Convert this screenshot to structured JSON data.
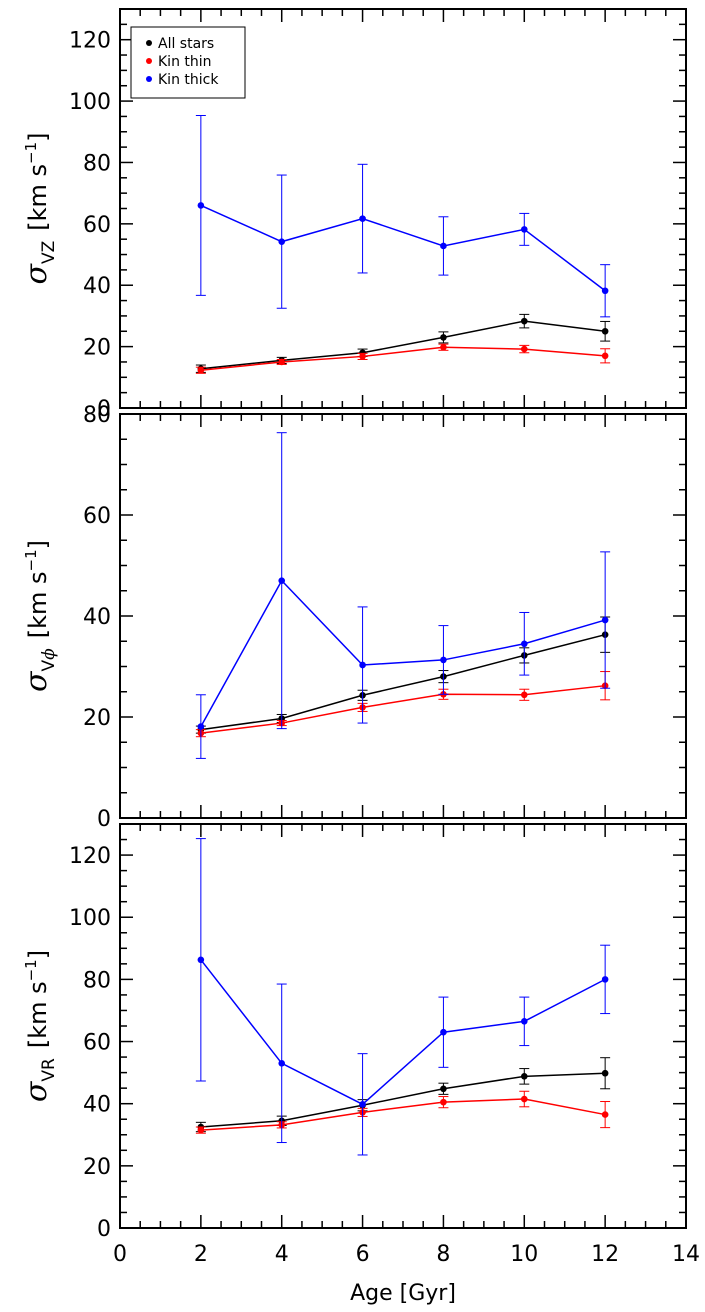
{
  "chart_data": [
    {
      "type": "line",
      "panel": "top",
      "ylabel_symbol": "σ",
      "ylabel_subscript": "VZ",
      "ylabel_units": "[km s",
      "ylabel_units_sup": "−1",
      "ylabel_units_close": "]",
      "ylim": [
        0,
        130
      ],
      "yticks": [
        0,
        20,
        40,
        60,
        80,
        100,
        120
      ],
      "xlim": [
        0,
        14
      ],
      "legend": {
        "placement": "top-left",
        "entries": [
          {
            "label": "All stars",
            "color": "#000000"
          },
          {
            "label": "Kin thin",
            "color": "#ff0000"
          },
          {
            "label": "Kin thick",
            "color": "#0000ff"
          }
        ]
      },
      "series": [
        {
          "name": "All stars",
          "color": "#000000",
          "x": [
            2,
            4,
            6,
            8,
            10,
            12
          ],
          "y": [
            12.8,
            15.5,
            18,
            23,
            28.3,
            25
          ],
          "err": [
            1.2,
            1,
            1.2,
            1.8,
            2.2,
            3.2
          ]
        },
        {
          "name": "Kin thin",
          "color": "#ff0000",
          "x": [
            2,
            4,
            6,
            8,
            10,
            12
          ],
          "y": [
            12.3,
            15,
            16.8,
            19.8,
            19.2,
            17
          ],
          "err": [
            1,
            0.8,
            1,
            1,
            1.2,
            2.3
          ]
        },
        {
          "name": "Kin thick",
          "color": "#0000ff",
          "x": [
            2,
            4,
            6,
            8,
            10,
            12
          ],
          "y": [
            66,
            54.2,
            61.7,
            52.8,
            58.2,
            38.2
          ],
          "err": [
            29.3,
            21.7,
            17.7,
            9.5,
            5.2,
            8.5
          ]
        }
      ]
    },
    {
      "type": "line",
      "panel": "middle",
      "ylabel_symbol": "σ",
      "ylabel_subscript": "V",
      "ylabel_subscript_phi": "ϕ",
      "ylabel_units": "[km s",
      "ylabel_units_sup": "−1",
      "ylabel_units_close": "]",
      "ylim": [
        0,
        80
      ],
      "yticks": [
        0,
        20,
        40,
        60,
        80
      ],
      "xlim": [
        0,
        14
      ],
      "series": [
        {
          "name": "All stars",
          "color": "#000000",
          "x": [
            2,
            4,
            6,
            8,
            10,
            12
          ],
          "y": [
            17.5,
            19.7,
            24.3,
            28,
            32.2,
            36.3
          ],
          "err": [
            0.7,
            0.8,
            1,
            1.2,
            1.5,
            3.5
          ]
        },
        {
          "name": "Kin thin",
          "color": "#ff0000",
          "x": [
            2,
            4,
            6,
            8,
            10,
            12
          ],
          "y": [
            16.8,
            18.8,
            21.9,
            24.5,
            24.4,
            26.2
          ],
          "err": [
            0.7,
            0.5,
            0.8,
            1,
            1.1,
            2.8
          ]
        },
        {
          "name": "Kin thick",
          "color": "#0000ff",
          "x": [
            2,
            4,
            6,
            8,
            10,
            12
          ],
          "y": [
            18.1,
            47,
            30.3,
            31.3,
            34.5,
            39.2
          ],
          "err": [
            6.3,
            29.3,
            11.5,
            6.8,
            6.2,
            13.5
          ]
        }
      ]
    },
    {
      "type": "line",
      "panel": "bottom",
      "ylabel_symbol": "σ",
      "ylabel_subscript": "VR",
      "ylabel_units": "[km s",
      "ylabel_units_sup": "−1",
      "ylabel_units_close": "]",
      "ylim": [
        0,
        130
      ],
      "yticks": [
        0,
        20,
        40,
        60,
        80,
        100,
        120
      ],
      "xlim": [
        0,
        14
      ],
      "xticks": [
        0,
        2,
        4,
        6,
        8,
        10,
        12,
        14
      ],
      "xlabel": "Age [Gyr]",
      "series": [
        {
          "name": "All stars",
          "color": "#000000",
          "x": [
            2,
            4,
            6,
            8,
            10,
            12
          ],
          "y": [
            32.5,
            34.5,
            39.5,
            44.8,
            48.8,
            49.8
          ],
          "err": [
            1.5,
            1.5,
            1.8,
            1.8,
            2.5,
            5
          ]
        },
        {
          "name": "Kin thin",
          "color": "#ff0000",
          "x": [
            2,
            4,
            6,
            8,
            10,
            12
          ],
          "y": [
            31.5,
            33.2,
            37.2,
            40.5,
            41.5,
            36.5
          ],
          "err": [
            1,
            1,
            1.3,
            1.8,
            2.5,
            4.2
          ]
        },
        {
          "name": "Kin thick",
          "color": "#0000ff",
          "x": [
            2,
            4,
            6,
            8,
            10,
            12
          ],
          "y": [
            86.3,
            53,
            39.8,
            63,
            66.5,
            80
          ],
          "err": [
            39,
            25.5,
            16.3,
            11.3,
            7.8,
            11
          ]
        }
      ]
    }
  ]
}
